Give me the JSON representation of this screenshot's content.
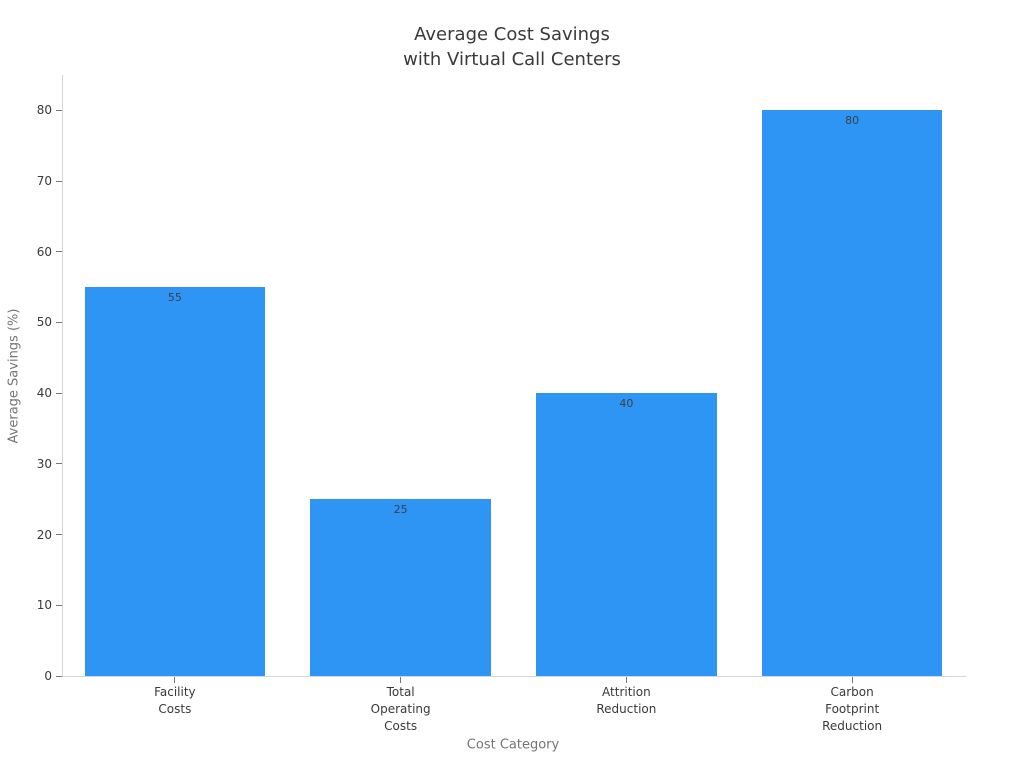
{
  "chart_data": {
    "type": "bar",
    "title": "Average Cost Savings\nwith Virtual Call Centers",
    "xlabel": "Cost Category",
    "ylabel": "Average Savings (%)",
    "categories": [
      "Facility\nCosts",
      "Total\nOperating\nCosts",
      "Attrition\nReduction",
      "Carbon\nFootprint\nReduction"
    ],
    "values": [
      55,
      25,
      40,
      80
    ],
    "bar_labels": [
      "55",
      "25",
      "40",
      "80"
    ],
    "yticks": [
      0,
      10,
      20,
      30,
      40,
      50,
      60,
      70,
      80
    ],
    "ylim": [
      0,
      85
    ],
    "grid": false,
    "legend_position": "none",
    "bar_color": "#2f95f5",
    "value_label_color": "#3c4046",
    "tick_label_color": "#3a3a3a",
    "axis_label_color": "#757575",
    "spine_color": "#d6d6d6",
    "background_color": "#ffffff"
  }
}
